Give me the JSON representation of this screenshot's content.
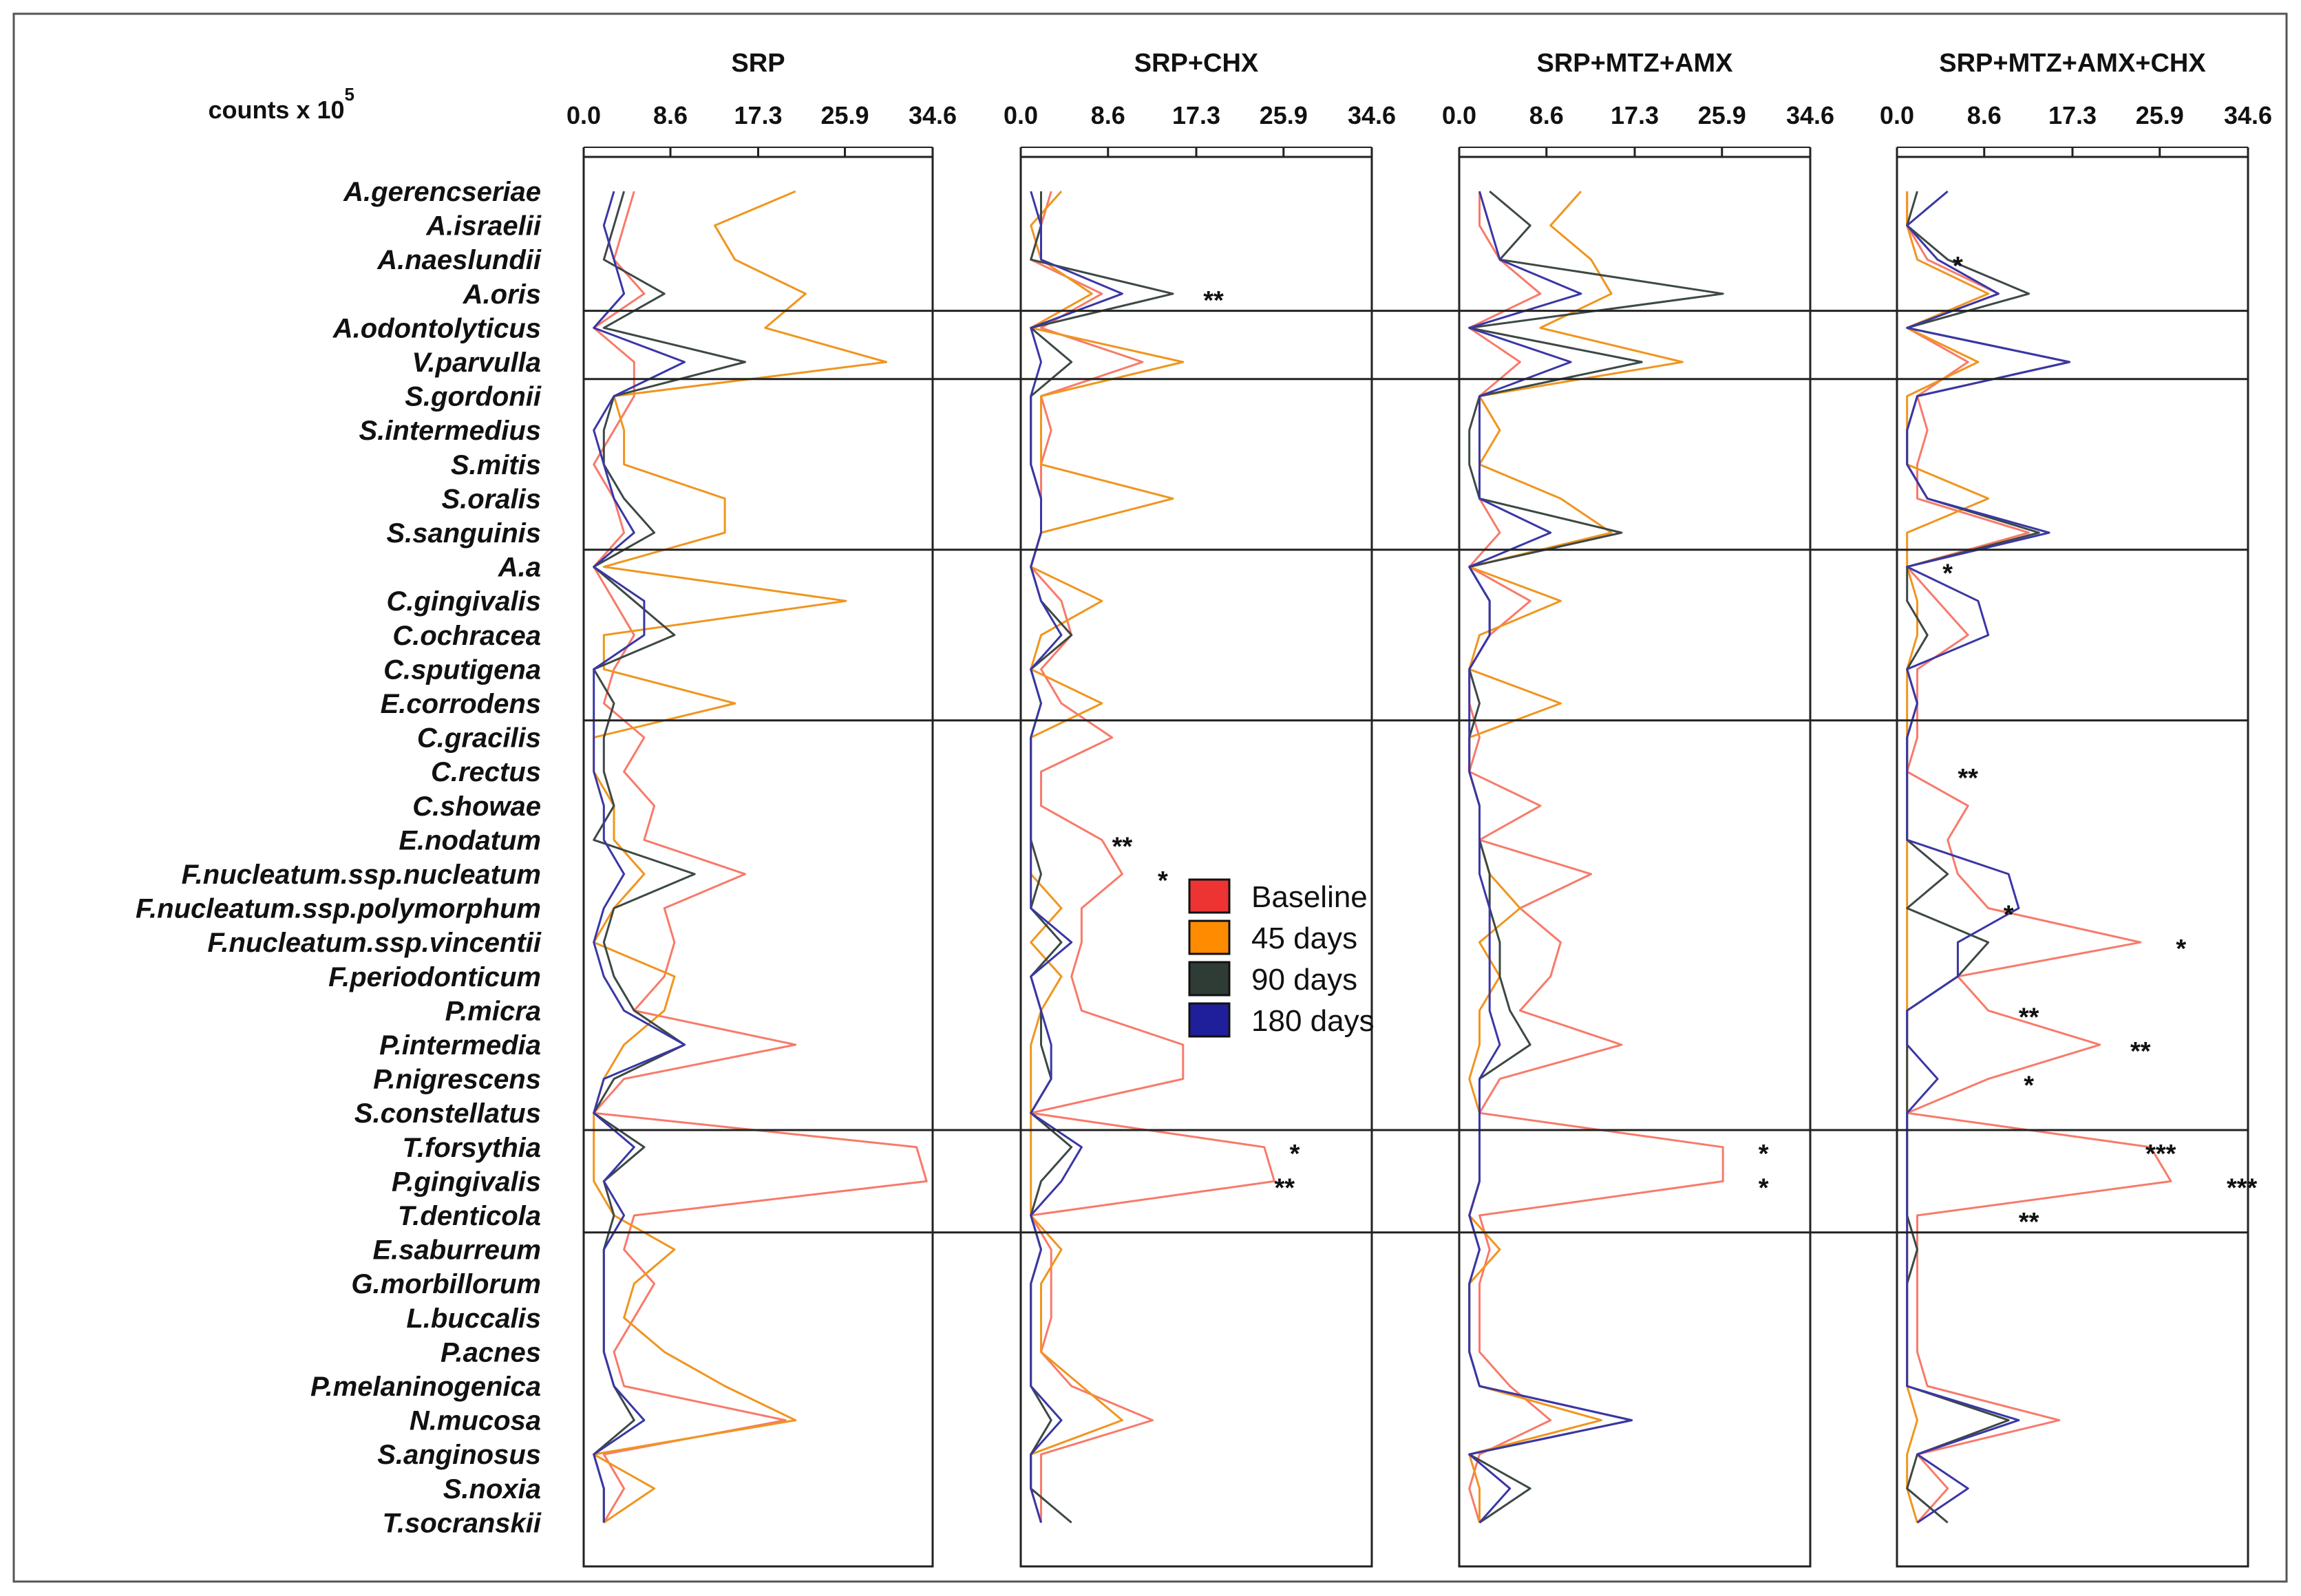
{
  "chart_data": {
    "type": "line",
    "orientation": "horizontal-profile",
    "units_label": "counts x 10",
    "units_exponent": "5",
    "xlim": [
      0,
      34.6
    ],
    "xticks": [
      "0.0",
      "8.6",
      "17.3",
      "25.9",
      "34.6"
    ],
    "xtick_values": [
      0,
      8.6,
      17.3,
      25.9,
      34.6
    ],
    "species": [
      "A.gerencseriae",
      "A.israelii",
      "A.naeslundii",
      "A.oris",
      "A.odontolyticus",
      "V.parvulla",
      "S.gordonii",
      "S.intermedius",
      "S.mitis",
      "S.oralis",
      "S.sanguinis",
      "A.a",
      "C.gingivalis",
      "C.ochracea",
      "C.sputigena",
      "E.corrodens",
      "C.gracilis",
      "C.rectus",
      "C.showae",
      "E.nodatum",
      "F.nucleatum.ssp.nucleatum",
      "F.nucleatum.ssp.polymorphum",
      "F.nucleatum.ssp.vincentii",
      "F.periodonticum",
      "P.micra",
      "P.intermedia",
      "P.nigrescens",
      "S.constellatus",
      "T.forsythia",
      "P.gingivalis",
      "T.denticola",
      "E.saburreum",
      "G.morbillorum",
      "L.buccalis",
      "P.acnes",
      "P.melaninogenica",
      "N.mucosa",
      "S.anginosus",
      "S.noxia",
      "T.socranskii"
    ],
    "complex_breaks_after": [
      3,
      5,
      10,
      15,
      27,
      30
    ],
    "legend": [
      {
        "name": "Baseline",
        "color": "#ee3333",
        "line": "#f87a6a"
      },
      {
        "name": "45 days",
        "color": "#ff8c00",
        "line": "#f0951e"
      },
      {
        "name": "90 days",
        "color": "#2f3b35",
        "line": "#3d4944"
      },
      {
        "name": "180 days",
        "color": "#1f1f9c",
        "line": "#3a37a6"
      }
    ],
    "panels": [
      {
        "title": "SRP",
        "series": [
          {
            "name": "Baseline",
            "values": [
              5,
              4,
              3,
              6,
              1,
              5,
              5,
              3,
              1,
              3,
              4,
              1,
              3,
              5,
              3,
              2,
              6,
              4,
              7,
              6,
              16,
              8,
              9,
              8,
              5,
              21,
              4,
              1,
              33,
              34,
              5,
              4,
              7,
              5,
              3,
              4,
              20,
              2,
              4,
              2
            ]
          },
          {
            "name": "45 days",
            "values": [
              21,
              13,
              15,
              22,
              18,
              30,
              3,
              4,
              4,
              14,
              14,
              2,
              26,
              2,
              2,
              15,
              1,
              1,
              3,
              3,
              6,
              3,
              1,
              9,
              8,
              4,
              2,
              1,
              1,
              1,
              3,
              9,
              5,
              4,
              8,
              14,
              21,
              1,
              7,
              2
            ]
          },
          {
            "name": "90 days",
            "values": [
              4,
              3,
              2,
              8,
              2,
              16,
              3,
              2,
              2,
              4,
              7,
              1,
              5,
              9,
              1,
              3,
              2,
              2,
              3,
              1,
              11,
              3,
              2,
              3,
              5,
              10,
              3,
              1,
              6,
              2,
              3,
              2,
              2,
              2,
              2,
              3,
              5,
              1,
              2,
              2
            ]
          },
          {
            "name": "180 days",
            "values": [
              3,
              2,
              3,
              4,
              1,
              10,
              3,
              1,
              2,
              3,
              5,
              1,
              6,
              6,
              1,
              1,
              1,
              1,
              2,
              2,
              4,
              2,
              1,
              2,
              4,
              10,
              2,
              1,
              5,
              2,
              4,
              2,
              2,
              2,
              2,
              3,
              6,
              1,
              2,
              2
            ]
          }
        ]
      },
      {
        "title": "SRP+CHX",
        "series": [
          {
            "name": "Baseline",
            "values": [
              3,
              2,
              1,
              8,
              2,
              12,
              2,
              3,
              2,
              2,
              2,
              1,
              4,
              5,
              2,
              4,
              9,
              2,
              2,
              8,
              10,
              6,
              6,
              5,
              6,
              16,
              16,
              1,
              24,
              25,
              1,
              3,
              3,
              3,
              2,
              5,
              13,
              2,
              2,
              2
            ]
          },
          {
            "name": "45 days",
            "values": [
              4,
              1,
              2,
              7,
              1,
              16,
              2,
              2,
              2,
              15,
              2,
              1,
              8,
              2,
              1,
              8,
              1,
              1,
              1,
              1,
              1,
              4,
              1,
              4,
              2,
              1,
              1,
              1,
              1,
              1,
              1,
              4,
              2,
              2,
              2,
              6,
              10,
              1,
              1,
              2
            ]
          },
          {
            "name": "90 days",
            "values": [
              2,
              2,
              1,
              15,
              1,
              5,
              1,
              1,
              1,
              2,
              2,
              1,
              2,
              5,
              1,
              2,
              1,
              1,
              1,
              1,
              2,
              1,
              4,
              1,
              2,
              2,
              3,
              1,
              5,
              2,
              1,
              2,
              1,
              1,
              1,
              1,
              3,
              1,
              1,
              5
            ]
          },
          {
            "name": "180 days",
            "values": [
              1,
              2,
              2,
              10,
              1,
              2,
              1,
              1,
              1,
              2,
              2,
              1,
              2,
              4,
              1,
              2,
              1,
              1,
              1,
              1,
              1,
              1,
              5,
              1,
              2,
              3,
              3,
              1,
              6,
              4,
              1,
              2,
              1,
              1,
              1,
              1,
              4,
              1,
              1,
              2
            ]
          }
        ]
      },
      {
        "title": "SRP+MTZ+AMX",
        "series": [
          {
            "name": "Baseline",
            "values": [
              2,
              2,
              4,
              8,
              1,
              6,
              2,
              2,
              2,
              2,
              4,
              1,
              7,
              3,
              1,
              1,
              2,
              1,
              8,
              2,
              13,
              6,
              10,
              9,
              6,
              16,
              4,
              2,
              26,
              26,
              2,
              3,
              2,
              2,
              2,
              5,
              9,
              2,
              1,
              2
            ]
          },
          {
            "name": "45 days",
            "values": [
              12,
              9,
              13,
              15,
              8,
              22,
              2,
              4,
              2,
              10,
              15,
              1,
              10,
              2,
              1,
              10,
              1,
              1,
              2,
              2,
              3,
              6,
              2,
              4,
              2,
              2,
              1,
              2,
              2,
              2,
              1,
              4,
              1,
              1,
              1,
              2,
              14,
              1,
              2,
              2
            ]
          },
          {
            "name": "90 days",
            "values": [
              3,
              7,
              4,
              26,
              1,
              18,
              2,
              1,
              1,
              2,
              16,
              1,
              3,
              3,
              1,
              2,
              1,
              1,
              2,
              2,
              3,
              3,
              4,
              4,
              5,
              7,
              2,
              2,
              2,
              2,
              1,
              2,
              1,
              1,
              1,
              2,
              17,
              1,
              7,
              2
            ]
          },
          {
            "name": "180 days",
            "values": [
              2,
              3,
              4,
              12,
              1,
              11,
              2,
              2,
              2,
              2,
              9,
              1,
              3,
              3,
              1,
              1,
              1,
              1,
              2,
              2,
              2,
              3,
              3,
              3,
              3,
              4,
              2,
              2,
              2,
              2,
              1,
              2,
              1,
              1,
              1,
              2,
              17,
              1,
              5,
              2
            ]
          }
        ]
      },
      {
        "title": "SRP+MTZ+AMX+CHX",
        "series": [
          {
            "name": "Baseline",
            "values": [
              1,
              1,
              3,
              10,
              1,
              7,
              2,
              3,
              2,
              2,
              13,
              1,
              4,
              7,
              2,
              2,
              2,
              1,
              7,
              5,
              6,
              9,
              24,
              6,
              9,
              20,
              9,
              1,
              25,
              27,
              2,
              2,
              2,
              2,
              2,
              3,
              16,
              2,
              5,
              2
            ]
          },
          {
            "name": "45 days",
            "values": [
              1,
              1,
              2,
              9,
              1,
              8,
              1,
              1,
              1,
              9,
              1,
              1,
              2,
              2,
              1,
              1,
              1,
              1,
              1,
              1,
              1,
              1,
              1,
              1,
              1,
              1,
              1,
              1,
              1,
              1,
              1,
              1,
              1,
              1,
              1,
              1,
              2,
              1,
              1,
              2
            ]
          },
          {
            "name": "90 days",
            "values": [
              2,
              1,
              5,
              13,
              1,
              17,
              2,
              1,
              1,
              3,
              14,
              1,
              1,
              3,
              1,
              2,
              1,
              1,
              1,
              1,
              5,
              1,
              9,
              6,
              1,
              1,
              1,
              1,
              1,
              1,
              1,
              2,
              1,
              1,
              1,
              1,
              11,
              2,
              1,
              5
            ]
          },
          {
            "name": "180 days",
            "values": [
              5,
              1,
              4,
              10,
              1,
              17,
              2,
              1,
              1,
              3,
              15,
              1,
              8,
              9,
              1,
              2,
              1,
              1,
              1,
              1,
              11,
              12,
              6,
              6,
              1,
              1,
              4,
              1,
              1,
              1,
              1,
              1,
              1,
              1,
              1,
              1,
              12,
              2,
              7,
              2
            ]
          }
        ]
      }
    ],
    "annotations": [
      {
        "panel": 1,
        "species": "A.oris",
        "text": "**",
        "value": 19
      },
      {
        "panel": 1,
        "species": "E.nodatum",
        "text": "**",
        "value": 10
      },
      {
        "panel": 1,
        "species": "F.nucleatum.ssp.nucleatum",
        "text": "*",
        "value": 14
      },
      {
        "panel": 1,
        "species": "T.forsythia",
        "text": "*",
        "value": 27
      },
      {
        "panel": 1,
        "species": "P.gingivalis",
        "text": "**",
        "value": 26
      },
      {
        "panel": 2,
        "species": "T.forsythia",
        "text": "*",
        "value": 30
      },
      {
        "panel": 2,
        "species": "P.gingivalis",
        "text": "*",
        "value": 30
      },
      {
        "panel": 3,
        "species": "A.naeslundii",
        "text": "*",
        "value": 6
      },
      {
        "panel": 3,
        "species": "A.a",
        "text": "*",
        "value": 5
      },
      {
        "panel": 3,
        "species": "C.rectus",
        "text": "**",
        "value": 7
      },
      {
        "panel": 3,
        "species": "F.nucleatum.ssp.polymorphum",
        "text": "*",
        "value": 11
      },
      {
        "panel": 3,
        "species": "F.nucleatum.ssp.vincentii",
        "text": "*",
        "value": 28
      },
      {
        "panel": 3,
        "species": "P.micra",
        "text": "**",
        "value": 13
      },
      {
        "panel": 3,
        "species": "P.intermedia",
        "text": "**",
        "value": 24
      },
      {
        "panel": 3,
        "species": "P.nigrescens",
        "text": "*",
        "value": 13
      },
      {
        "panel": 3,
        "species": "T.forsythia",
        "text": "***",
        "value": 26
      },
      {
        "panel": 3,
        "species": "P.gingivalis",
        "text": "***",
        "value": 34
      },
      {
        "panel": 3,
        "species": "T.denticola",
        "text": "**",
        "value": 13
      }
    ]
  }
}
